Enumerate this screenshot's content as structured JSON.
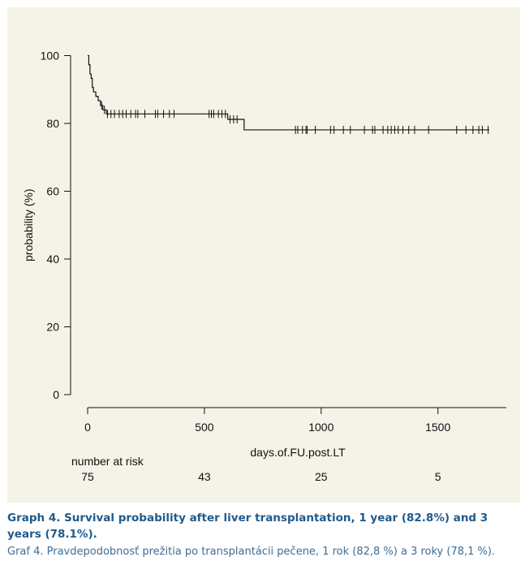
{
  "chart_data": {
    "type": "line",
    "title": "",
    "xlabel": "days.of.FU.post.LT",
    "ylabel": "probability (%)",
    "xlim": [
      0,
      1800
    ],
    "ylim": [
      0,
      100
    ],
    "x_ticks": [
      "0",
      "500",
      "1000",
      "1500"
    ],
    "y_ticks": [
      "0",
      "20",
      "40",
      "60",
      "80",
      "100"
    ],
    "grid": false,
    "legend": "none",
    "line_color": "#111111",
    "series": [
      {
        "steps": [
          {
            "x": 0,
            "y": 100
          },
          {
            "x": 5,
            "y": 97.3
          },
          {
            "x": 10,
            "y": 94.6
          },
          {
            "x": 15,
            "y": 93.3
          },
          {
            "x": 20,
            "y": 90.6
          },
          {
            "x": 25,
            "y": 89.3
          },
          {
            "x": 35,
            "y": 88.0
          },
          {
            "x": 45,
            "y": 86.7
          },
          {
            "x": 55,
            "y": 85.3
          },
          {
            "x": 65,
            "y": 84.0
          },
          {
            "x": 80,
            "y": 82.8
          },
          {
            "x": 600,
            "y": 81.2
          },
          {
            "x": 670,
            "y": 78.1
          },
          {
            "x": 1720,
            "y": 78.1
          }
        ],
        "censored": [
          60,
          72,
          85,
          100,
          115,
          135,
          150,
          165,
          185,
          205,
          215,
          245,
          290,
          300,
          325,
          350,
          370,
          520,
          530,
          540,
          560,
          575,
          590,
          610,
          625,
          640,
          890,
          900,
          920,
          935,
          940,
          975,
          1040,
          1055,
          1095,
          1125,
          1185,
          1220,
          1230,
          1265,
          1285,
          1300,
          1315,
          1330,
          1350,
          1375,
          1400,
          1460,
          1580,
          1620,
          1650,
          1675,
          1690,
          1715
        ]
      }
    ],
    "risk_table": {
      "title": "number at risk",
      "times": [
        0,
        500,
        1000,
        1500
      ],
      "counts": [
        "75",
        "43",
        "25",
        "5"
      ]
    }
  },
  "caption": {
    "en": "Graph 4. Survival probability after liver transplantation, 1 year (82.8%) and 3 years (78.1%).",
    "sk": "Graf 4. Pravdepodobnosť prežitia po transplantácii pečene, 1 rok (82,8 %) a 3 roky (78,1 %)."
  }
}
